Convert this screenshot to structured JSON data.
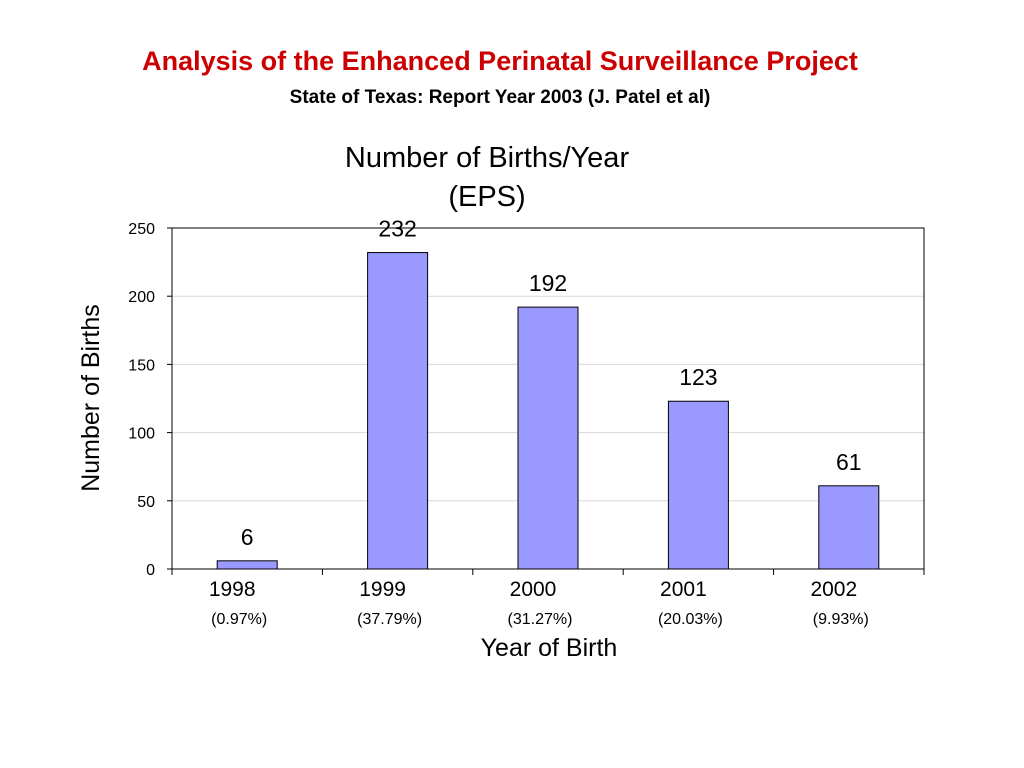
{
  "slide": {
    "title": "Analysis of the Enhanced Perinatal Surveillance Project",
    "subtitle": "State of Texas: Report Year 2003 (J. Patel et al)"
  },
  "colors": {
    "title": "#cc0000",
    "bar_fill": "#9999ff",
    "bar_stroke": "#000000",
    "gridline": "#d9d9d9"
  },
  "chart_data": {
    "type": "bar",
    "title_lines": [
      "Number of Births/Year",
      "(EPS)"
    ],
    "categories": [
      "1998",
      "1999",
      "2000",
      "2001",
      "2002"
    ],
    "category_sublabels": [
      "(0.97%)",
      "(37.79%)",
      "(31.27%)",
      "(20.03%)",
      "(9.93%)"
    ],
    "values": [
      6,
      232,
      192,
      123,
      61
    ],
    "data_labels": [
      "6",
      "232",
      "192",
      "123",
      "61"
    ],
    "xlabel": "Year of Birth",
    "ylabel": "Number of Births",
    "ylim": [
      0,
      250
    ],
    "yticks": [
      0,
      50,
      100,
      150,
      200,
      250
    ],
    "grid": true,
    "legend": "none"
  }
}
